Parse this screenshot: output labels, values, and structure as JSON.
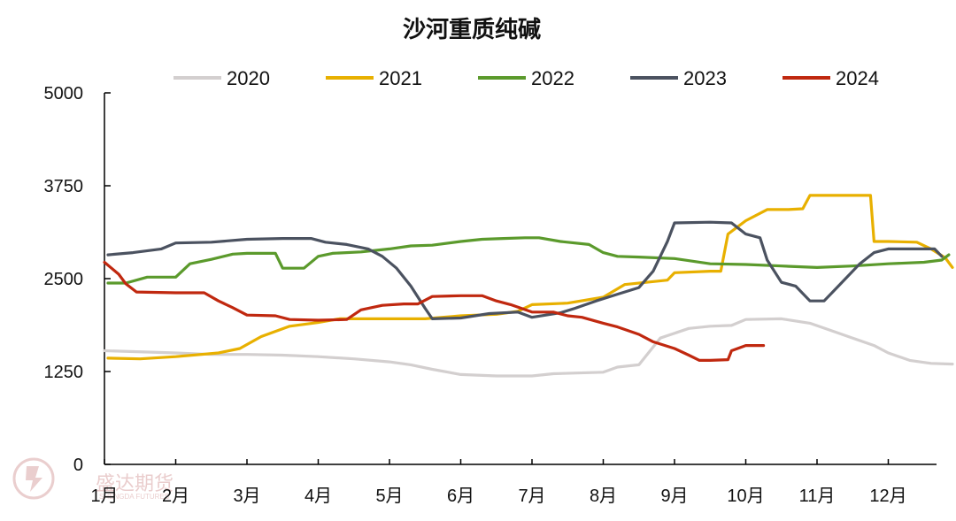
{
  "chart_data": {
    "type": "line",
    "title": "沙河重质纯碱",
    "xlabel": "",
    "ylabel": "",
    "ylim": [
      0,
      5000
    ],
    "yticks": [
      "0",
      "1250",
      "2500",
      "3750",
      "5000"
    ],
    "months": [
      "1月",
      "2月",
      "3月",
      "4月",
      "5月",
      "6月",
      "7月",
      "8月",
      "9月",
      "10月",
      "11月",
      "12月"
    ],
    "legend_position": "top",
    "grid": false,
    "series": [
      {
        "name": "2020",
        "color": "#d3cfcf",
        "points": [
          [
            0.0,
            1530
          ],
          [
            1.0,
            1500
          ],
          [
            1.5,
            1480
          ],
          [
            2.0,
            1480
          ],
          [
            2.5,
            1470
          ],
          [
            3.0,
            1450
          ],
          [
            3.5,
            1420
          ],
          [
            4.0,
            1380
          ],
          [
            4.3,
            1340
          ],
          [
            4.6,
            1280
          ],
          [
            5.0,
            1210
          ],
          [
            5.5,
            1190
          ],
          [
            6.0,
            1190
          ],
          [
            6.3,
            1220
          ],
          [
            7.0,
            1240
          ],
          [
            7.2,
            1310
          ],
          [
            7.5,
            1340
          ],
          [
            7.8,
            1700
          ],
          [
            8.2,
            1830
          ],
          [
            8.5,
            1860
          ],
          [
            8.8,
            1870
          ],
          [
            9.0,
            1950
          ],
          [
            9.5,
            1960
          ],
          [
            9.9,
            1900
          ],
          [
            10.2,
            1800
          ],
          [
            10.5,
            1700
          ],
          [
            10.8,
            1600
          ],
          [
            11.0,
            1500
          ],
          [
            11.3,
            1400
          ],
          [
            11.6,
            1360
          ],
          [
            11.9,
            1350
          ]
        ]
      },
      {
        "name": "2021",
        "color": "#e8b000",
        "points": [
          [
            0.05,
            1430
          ],
          [
            0.5,
            1420
          ],
          [
            1.0,
            1450
          ],
          [
            1.6,
            1500
          ],
          [
            1.9,
            1560
          ],
          [
            2.2,
            1720
          ],
          [
            2.6,
            1860
          ],
          [
            3.0,
            1910
          ],
          [
            3.3,
            1960
          ],
          [
            3.5,
            1960
          ],
          [
            4.0,
            1960
          ],
          [
            4.5,
            1960
          ],
          [
            5.0,
            2000
          ],
          [
            5.5,
            2020
          ],
          [
            5.8,
            2060
          ],
          [
            6.0,
            2150
          ],
          [
            6.5,
            2170
          ],
          [
            7.0,
            2250
          ],
          [
            7.3,
            2420
          ],
          [
            7.6,
            2450
          ],
          [
            7.9,
            2480
          ],
          [
            8.0,
            2580
          ],
          [
            8.5,
            2600
          ],
          [
            8.65,
            2600
          ],
          [
            8.75,
            3100
          ],
          [
            9.0,
            3280
          ],
          [
            9.3,
            3430
          ],
          [
            9.6,
            3430
          ],
          [
            9.8,
            3440
          ],
          [
            9.9,
            3620
          ],
          [
            10.5,
            3620
          ],
          [
            10.75,
            3620
          ],
          [
            10.8,
            3000
          ],
          [
            11.0,
            3000
          ],
          [
            11.4,
            2990
          ],
          [
            11.6,
            2900
          ],
          [
            11.8,
            2780
          ],
          [
            11.9,
            2650
          ]
        ]
      },
      {
        "name": "2022",
        "color": "#5b9a2c",
        "points": [
          [
            0.05,
            2440
          ],
          [
            0.3,
            2440
          ],
          [
            0.6,
            2520
          ],
          [
            1.0,
            2520
          ],
          [
            1.2,
            2700
          ],
          [
            1.5,
            2760
          ],
          [
            1.8,
            2830
          ],
          [
            2.0,
            2840
          ],
          [
            2.4,
            2840
          ],
          [
            2.5,
            2640
          ],
          [
            2.8,
            2640
          ],
          [
            3.0,
            2800
          ],
          [
            3.2,
            2840
          ],
          [
            3.6,
            2860
          ],
          [
            4.0,
            2900
          ],
          [
            4.3,
            2940
          ],
          [
            4.6,
            2950
          ],
          [
            5.0,
            3000
          ],
          [
            5.3,
            3030
          ],
          [
            5.6,
            3040
          ],
          [
            5.9,
            3050
          ],
          [
            6.1,
            3050
          ],
          [
            6.4,
            3000
          ],
          [
            6.8,
            2960
          ],
          [
            7.0,
            2850
          ],
          [
            7.2,
            2800
          ],
          [
            7.5,
            2790
          ],
          [
            8.0,
            2770
          ],
          [
            8.5,
            2700
          ],
          [
            9.0,
            2690
          ],
          [
            9.5,
            2670
          ],
          [
            10.0,
            2650
          ],
          [
            10.5,
            2670
          ],
          [
            11.0,
            2700
          ],
          [
            11.5,
            2720
          ],
          [
            11.75,
            2750
          ],
          [
            11.85,
            2820
          ]
        ]
      },
      {
        "name": "2023",
        "color": "#4b5260",
        "points": [
          [
            0.05,
            2820
          ],
          [
            0.4,
            2850
          ],
          [
            0.8,
            2900
          ],
          [
            1.0,
            2980
          ],
          [
            1.5,
            2990
          ],
          [
            2.0,
            3030
          ],
          [
            2.5,
            3040
          ],
          [
            2.9,
            3040
          ],
          [
            3.1,
            2990
          ],
          [
            3.4,
            2960
          ],
          [
            3.7,
            2900
          ],
          [
            3.9,
            2800
          ],
          [
            4.1,
            2640
          ],
          [
            4.3,
            2400
          ],
          [
            4.5,
            2100
          ],
          [
            4.6,
            1960
          ],
          [
            5.0,
            1970
          ],
          [
            5.4,
            2030
          ],
          [
            5.8,
            2050
          ],
          [
            6.0,
            1980
          ],
          [
            6.4,
            2040
          ],
          [
            6.6,
            2100
          ],
          [
            6.9,
            2200
          ],
          [
            7.2,
            2290
          ],
          [
            7.5,
            2380
          ],
          [
            7.7,
            2600
          ],
          [
            7.9,
            3000
          ],
          [
            8.0,
            3250
          ],
          [
            8.5,
            3260
          ],
          [
            8.8,
            3250
          ],
          [
            9.0,
            3100
          ],
          [
            9.2,
            3050
          ],
          [
            9.3,
            2750
          ],
          [
            9.5,
            2450
          ],
          [
            9.7,
            2400
          ],
          [
            9.9,
            2200
          ],
          [
            10.1,
            2200
          ],
          [
            10.3,
            2400
          ],
          [
            10.6,
            2700
          ],
          [
            10.8,
            2850
          ],
          [
            11.0,
            2900
          ],
          [
            11.4,
            2900
          ],
          [
            11.65,
            2900
          ],
          [
            11.75,
            2800
          ]
        ]
      },
      {
        "name": "2024",
        "color": "#c0280f",
        "points": [
          [
            0.0,
            2720
          ],
          [
            0.1,
            2640
          ],
          [
            0.2,
            2560
          ],
          [
            0.3,
            2430
          ],
          [
            0.45,
            2320
          ],
          [
            1.0,
            2310
          ],
          [
            1.4,
            2310
          ],
          [
            1.6,
            2200
          ],
          [
            1.8,
            2110
          ],
          [
            2.0,
            2010
          ],
          [
            2.4,
            2000
          ],
          [
            2.6,
            1950
          ],
          [
            3.0,
            1940
          ],
          [
            3.4,
            1950
          ],
          [
            3.6,
            2080
          ],
          [
            3.9,
            2140
          ],
          [
            4.2,
            2160
          ],
          [
            4.4,
            2160
          ],
          [
            4.6,
            2260
          ],
          [
            5.0,
            2270
          ],
          [
            5.3,
            2270
          ],
          [
            5.5,
            2200
          ],
          [
            5.7,
            2150
          ],
          [
            6.0,
            2050
          ],
          [
            6.3,
            2050
          ],
          [
            6.5,
            2000
          ],
          [
            6.7,
            1980
          ],
          [
            7.0,
            1900
          ],
          [
            7.2,
            1850
          ],
          [
            7.5,
            1750
          ],
          [
            7.7,
            1650
          ],
          [
            8.0,
            1560
          ],
          [
            8.2,
            1470
          ],
          [
            8.35,
            1400
          ],
          [
            8.5,
            1400
          ],
          [
            8.75,
            1410
          ],
          [
            8.8,
            1530
          ],
          [
            9.0,
            1600
          ],
          [
            9.25,
            1600
          ]
        ]
      }
    ]
  },
  "watermark": {
    "text": "盛达期货",
    "subtext": "SHENGDA FUTURES"
  }
}
